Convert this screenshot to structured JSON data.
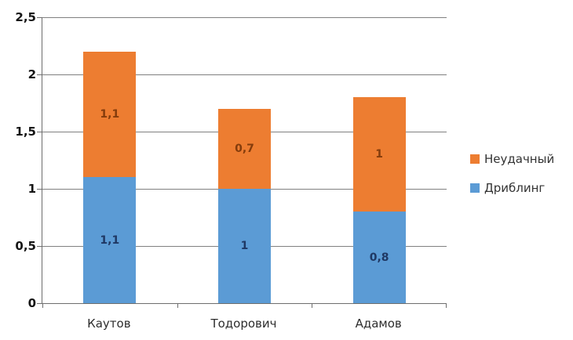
{
  "chart_data": {
    "type": "bar",
    "stacked": true,
    "title": "",
    "categories": [
      "Каутов",
      "Тодорович",
      "Адамов"
    ],
    "series": [
      {
        "name": "Дриблинг",
        "color": "#5B9BD5",
        "label_color": "#1F3864",
        "values": [
          1.1,
          1.0,
          0.8
        ],
        "value_labels": [
          "1,1",
          "1",
          "0,8"
        ]
      },
      {
        "name": "Неудачный",
        "color": "#ED7D31",
        "label_color": "#843C0C",
        "values": [
          1.1,
          0.7,
          1.0
        ],
        "value_labels": [
          "1,1",
          "0,7",
          "1"
        ]
      }
    ],
    "totals": [
      2.2,
      1.7,
      1.8
    ],
    "y_axis": {
      "min": 0,
      "max": 2.5,
      "step": 0.5,
      "tick_labels": [
        "0",
        "0,5",
        "1",
        "1,5",
        "2",
        "2,5"
      ]
    },
    "x_axis": {
      "tick_labels": [
        "Каутов",
        "Тодорович",
        "Адамов"
      ]
    },
    "legend": {
      "position": "right",
      "entries": [
        "Неудачный",
        "Дриблинг"
      ]
    },
    "grid": true,
    "colors": {
      "background": "#FFFFFF",
      "gridline": "#808080",
      "axis": "#6E6E6E",
      "axis_text": "#151515",
      "category_text": "#2D2D2D",
      "legend_text": "#333333"
    }
  }
}
